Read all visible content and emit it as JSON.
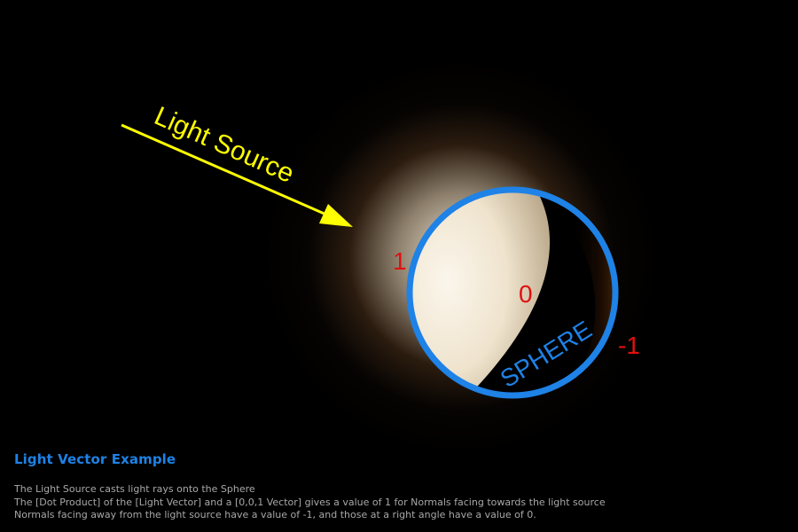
{
  "diagram": {
    "light_source_label": "Light Source",
    "sphere_label": "SPHERE",
    "values": {
      "lit": "1",
      "terminator": "0",
      "dark": "-1"
    },
    "colors": {
      "background": "#000000",
      "arrow": "#ffff00",
      "sphere_outline": "#1e82e6",
      "value_labels": "#e01010",
      "sphere_lit": "#f7efe2",
      "sphere_shadow": "#000000"
    }
  },
  "caption": {
    "title": "Light Vector Example",
    "lines": [
      "The Light Source casts light rays onto the Sphere",
      "The [Dot Product] of the [Light Vector] and a [0,0,1 Vector] gives a value of 1 for Normals facing towards the light source",
      "Normals facing away from the light source have a value of -1, and those at a right angle have a value of 0."
    ]
  }
}
